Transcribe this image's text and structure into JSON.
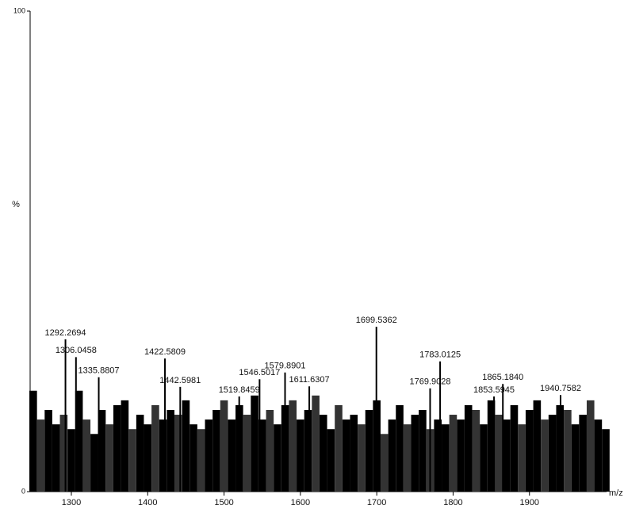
{
  "chart_data": {
    "type": "spectrum",
    "ylabel": "%",
    "xlabel": "m/z",
    "xlim": [
      1246,
      2001
    ],
    "ylim": [
      0,
      100
    ],
    "xticks": [
      1300,
      1400,
      1500,
      1600,
      1700,
      1800,
      1900
    ],
    "yticks": [
      0,
      100
    ],
    "color": "#000000",
    "background": {
      "x": [
        1250,
        1260,
        1270,
        1280,
        1290,
        1300,
        1310,
        1320,
        1330,
        1340,
        1350,
        1360,
        1370,
        1380,
        1390,
        1400,
        1410,
        1420,
        1430,
        1440,
        1450,
        1460,
        1470,
        1480,
        1490,
        1500,
        1510,
        1520,
        1530,
        1540,
        1550,
        1560,
        1570,
        1580,
        1590,
        1600,
        1610,
        1620,
        1630,
        1640,
        1650,
        1660,
        1670,
        1680,
        1690,
        1700,
        1710,
        1720,
        1730,
        1740,
        1750,
        1760,
        1770,
        1780,
        1790,
        1800,
        1810,
        1820,
        1830,
        1840,
        1850,
        1860,
        1870,
        1880,
        1890,
        1900,
        1910,
        1920,
        1930,
        1940,
        1950,
        1960,
        1970,
        1980,
        1990,
        2000
      ],
      "values": [
        21,
        15,
        17,
        14,
        16,
        13,
        21,
        15,
        12,
        17,
        14,
        18,
        19,
        13,
        16,
        14,
        18,
        15,
        17,
        16,
        19,
        14,
        13,
        15,
        17,
        19,
        15,
        18,
        16,
        20,
        15,
        17,
        14,
        18,
        19,
        15,
        17,
        20,
        16,
        13,
        18,
        15,
        16,
        14,
        17,
        19,
        12,
        15,
        18,
        14,
        16,
        17,
        13,
        15,
        14,
        16,
        15,
        18,
        17,
        14,
        19,
        16,
        15,
        18,
        14,
        17,
        19,
        15,
        16,
        18,
        17,
        14,
        16,
        19,
        15,
        13
      ]
    },
    "peaks": {
      "x": [
        1292.2694,
        1306.0458,
        1335.8807,
        1422.5809,
        1442.5981,
        1519.8459,
        1546.5017,
        1579.8901,
        1611.6307,
        1699.5362,
        1769.9028,
        1783.0125,
        1853.5945,
        1865.184,
        1940.7582
      ],
      "x_labels": [
        "1292.2694",
        "1306.0458",
        "1335.8807",
        "1422.5809",
        "1442.5981",
        "1519.8459",
        "1546.5017",
        "1579.8901",
        "1611.6307",
        "1699.5362",
        "1769.9028",
        "1783.0125",
        "1853.5945",
        "1865.1840",
        "1940.7582"
      ],
      "values": [
        31.7,
        28,
        23.8,
        27.7,
        21.8,
        19.8,
        23.4,
        24.8,
        21.9,
        34.3,
        21.5,
        27.1,
        19.8,
        22.4,
        20.1
      ]
    }
  }
}
